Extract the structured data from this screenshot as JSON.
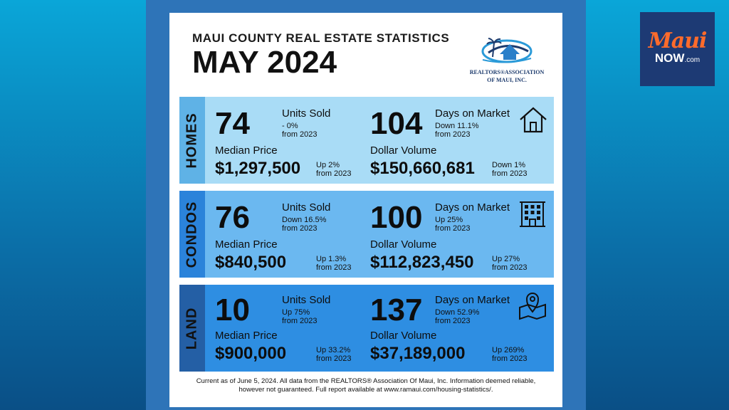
{
  "header": {
    "subtitle": "MAUI COUNTY REAL ESTATE STATISTICS",
    "title": "MAY 2024",
    "logo_line1": "REALTORS®ASSOCIATION",
    "logo_line2": "OF MAUI, INC."
  },
  "brand": {
    "maui": "Maui",
    "now": "NOW",
    "domain": ".com"
  },
  "colors": {
    "homes_bg": "#a9dcf6",
    "homes_label": "#5fb2e6",
    "condos_bg": "#6bb8f0",
    "condos_label": "#2b83da",
    "land_bg": "#2e8ee2",
    "land_label": "#245fa5"
  },
  "homes": {
    "label": "HOMES",
    "units_sold": "74",
    "units_label": "Units Sold",
    "units_change": "- 0%",
    "units_from": "from 2023",
    "dom": "104",
    "dom_label": "Days on Market",
    "dom_change": "Down 11.1%",
    "dom_from": "from 2023",
    "median_label": "Median Price",
    "median": "$1,297,500",
    "median_change": "Up 2%",
    "median_from": "from 2023",
    "volume_label": "Dollar Volume",
    "volume": "$150,660,681",
    "volume_change": "Down 1%",
    "volume_from": "from 2023",
    "icon": "house-icon"
  },
  "condos": {
    "label": "CONDOS",
    "units_sold": "76",
    "units_label": "Units Sold",
    "units_change": "Down 16.5%",
    "units_from": "from 2023",
    "dom": "100",
    "dom_label": "Days on Market",
    "dom_change": "Up 25%",
    "dom_from": "from 2023",
    "median_label": "Median Price",
    "median": "$840,500",
    "median_change": "Up 1.3%",
    "median_from": "from 2023",
    "volume_label": "Dollar Volume",
    "volume": "$112,823,450",
    "volume_change": "Up 27%",
    "volume_from": "from 2023",
    "icon": "building-icon"
  },
  "land": {
    "label": "LAND",
    "units_sold": "10",
    "units_label": "Units Sold",
    "units_change": "Up 75%",
    "units_from": "from 2023",
    "dom": "137",
    "dom_label": "Days on Market",
    "dom_change": "Down 52.9%",
    "dom_from": "from 2023",
    "median_label": "Median Price",
    "median": "$900,000",
    "median_change": "Up 33.2%",
    "median_from": "from 2023",
    "volume_label": "Dollar Volume",
    "volume": "$37,189,000",
    "volume_change": "Up 269%",
    "volume_from": "from 2023",
    "icon": "map-pin-icon"
  },
  "footer": {
    "line1": "Current as of June 5, 2024. All data from the REALTORS® Association Of Maui, Inc. Information deemed reliable,",
    "line2": "however not guaranteed. Full report available at www.ramaui.com/housing-statistics/."
  }
}
